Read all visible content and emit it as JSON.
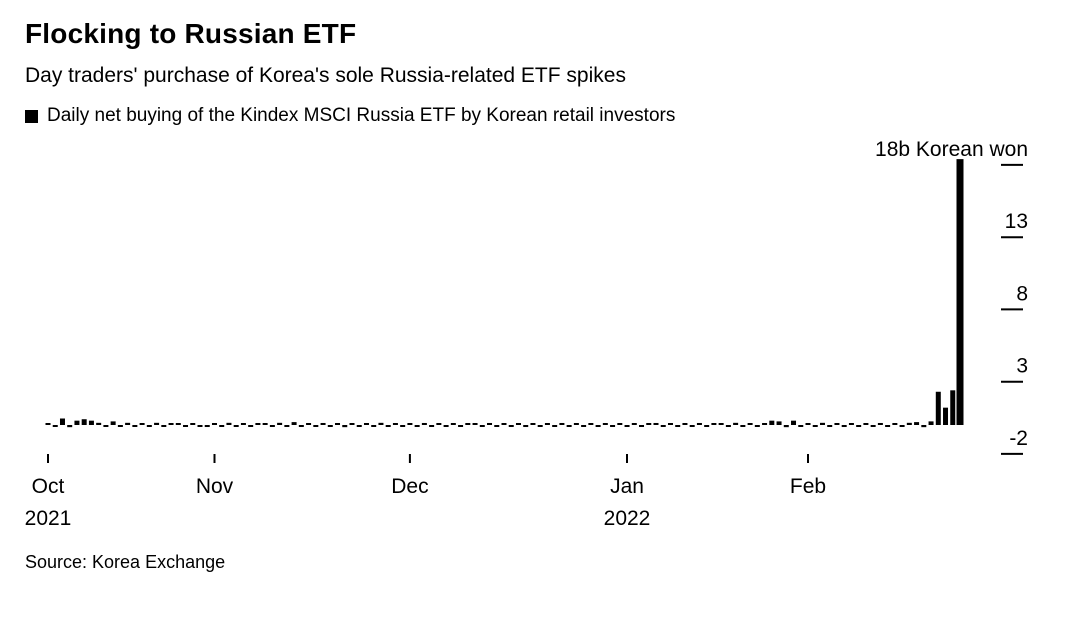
{
  "header": {
    "title": "Flocking to Russian ETF",
    "subtitle": "Day traders' purchase of Korea's sole Russia-related ETF spikes",
    "legend_label": "Daily net buying of the Kindex MSCI Russia ETF by Korean retail investors"
  },
  "source": "Source: Korea Exchange",
  "colors": {
    "background": "#ffffff",
    "bar": "#000000",
    "text": "#000000",
    "axis": "#000000"
  },
  "chart_data": {
    "type": "bar",
    "title": "Flocking to Russian ETF",
    "subtitle": "Day traders' purchase of Korea's sole Russia-related ETF spikes",
    "series_name": "Daily net buying of the Kindex MSCI Russia ETF by Korean retail investors",
    "unit": "b Korean won",
    "ylabel": "18b Korean won",
    "ylim": [
      -2.5,
      19
    ],
    "grid": false,
    "legend_position": "top-left",
    "y_ticks": [
      {
        "value": 18,
        "label": "18b Korean won"
      },
      {
        "value": 13,
        "label": "13"
      },
      {
        "value": 8,
        "label": "8"
      },
      {
        "value": 3,
        "label": "3"
      },
      {
        "value": -2,
        "label": "-2"
      }
    ],
    "x_ticks": [
      {
        "label": "Oct",
        "year": "2021",
        "index": 0
      },
      {
        "label": "Nov",
        "index": 23
      },
      {
        "label": "Dec",
        "index": 50
      },
      {
        "label": "Jan",
        "year": "2022",
        "index": 80
      },
      {
        "label": "Feb",
        "index": 105
      }
    ],
    "values": [
      0.1,
      -0.1,
      0.45,
      -0.15,
      0.3,
      0.4,
      0.3,
      0.15,
      -0.1,
      0.25,
      -0.12,
      0.15,
      -0.1,
      0.12,
      -0.1,
      0.15,
      -0.12,
      0.1,
      0.12,
      -0.1,
      0.12,
      -0.1,
      -0.14,
      0.12,
      -0.1,
      0.15,
      -0.12,
      0.1,
      -0.1,
      0.12,
      0.1,
      -0.12,
      0.15,
      -0.1,
      0.2,
      -0.12,
      0.1,
      -0.1,
      0.14,
      -0.12,
      0.1,
      -0.15,
      0.12,
      -0.1,
      0.1,
      -0.12,
      0.15,
      -0.1,
      0.12,
      -0.1,
      0.1,
      -0.12,
      0.14,
      -0.1,
      0.12,
      -0.1,
      0.1,
      -0.12,
      0.1,
      0.12,
      -0.1,
      0.14,
      -0.12,
      0.1,
      -0.1,
      0.12,
      -0.14,
      0.1,
      -0.1,
      0.12,
      -0.1,
      0.14,
      -0.12,
      0.1,
      -0.1,
      0.12,
      -0.1,
      0.1,
      -0.12,
      0.1,
      -0.1,
      0.12,
      -0.12,
      0.1,
      0.14,
      -0.1,
      0.12,
      -0.12,
      0.1,
      -0.1,
      0.14,
      -0.12,
      0.1,
      0.12,
      -0.1,
      0.15,
      -0.12,
      0.1,
      -0.1,
      0.12,
      0.3,
      0.25,
      -0.15,
      0.3,
      -0.12,
      0.12,
      -0.1,
      0.15,
      -0.12,
      0.1,
      -0.14,
      0.12,
      -0.1,
      0.1,
      -0.12,
      0.14,
      -0.1,
      0.12,
      -0.1,
      0.15,
      0.2,
      -0.15,
      0.25,
      2.3,
      1.2,
      2.4,
      18.4
    ]
  }
}
